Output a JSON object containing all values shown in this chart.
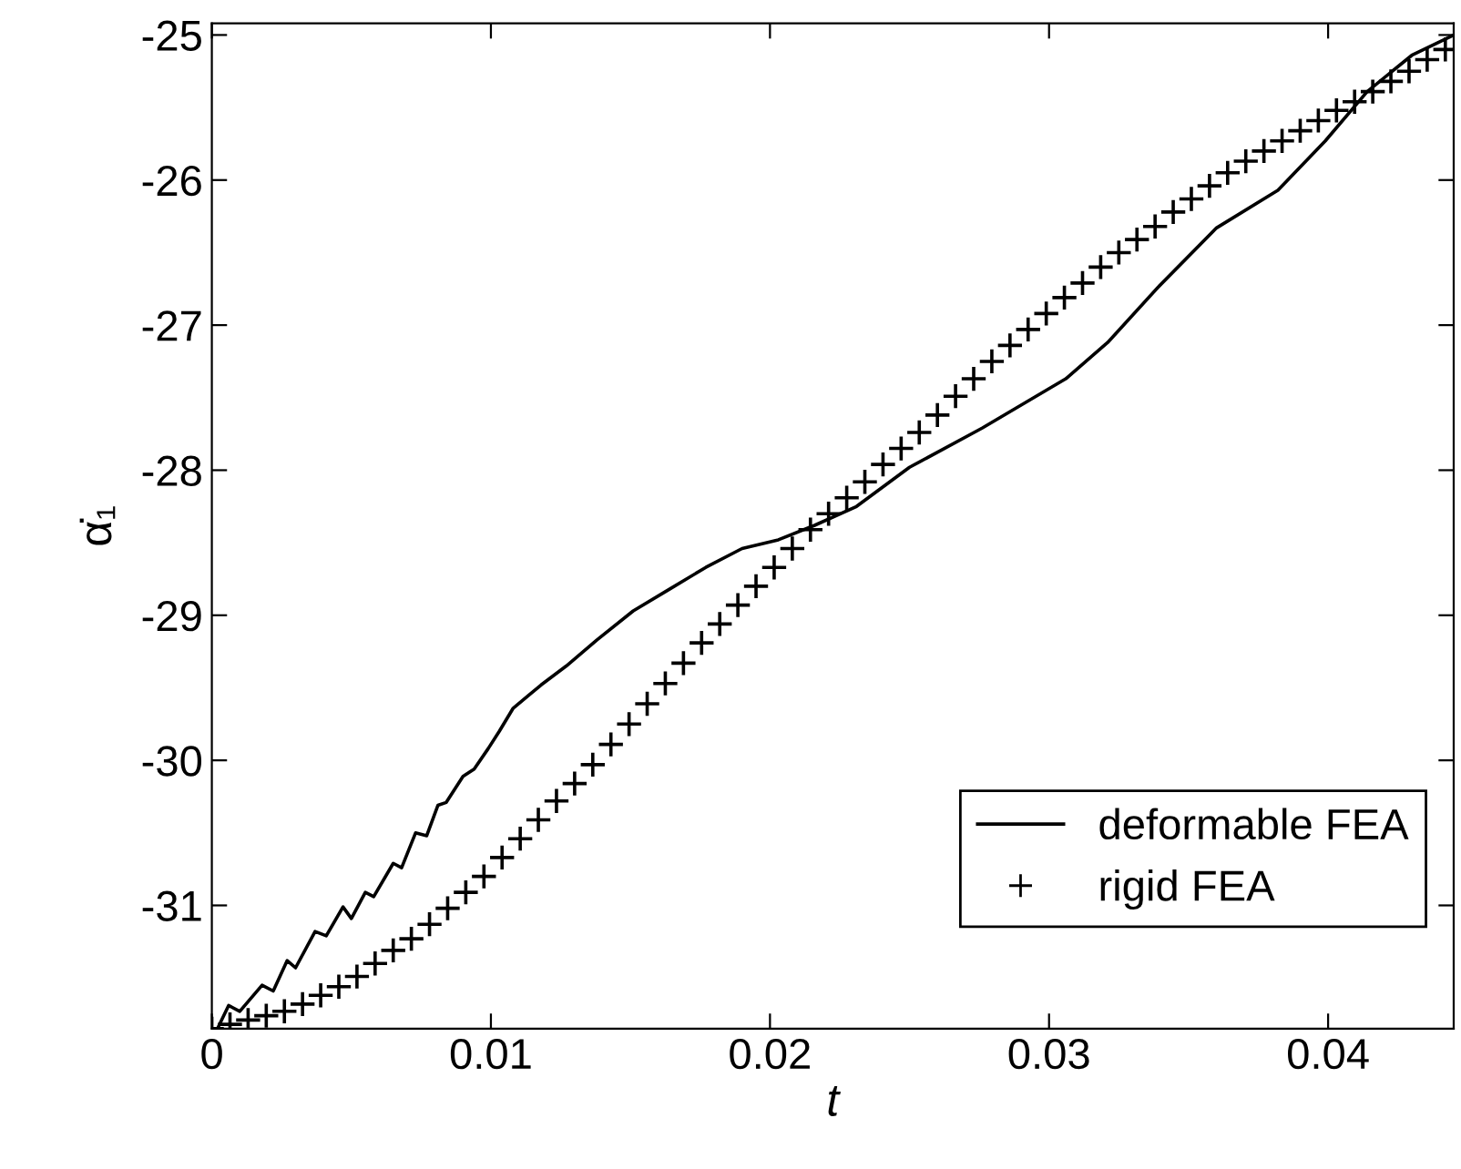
{
  "chart_data": {
    "type": "line",
    "xlabel": "t",
    "ylabel": "α̇₁",
    "xlim": [
      0,
      0.0445
    ],
    "ylim": [
      -31.85,
      -24.92
    ],
    "xticks": [
      0,
      0.01,
      0.02,
      0.03,
      0.04
    ],
    "yticks": [
      -25,
      -26,
      -27,
      -28,
      -29,
      -30,
      -31
    ],
    "grid": false,
    "legend": "bottom right",
    "series": [
      {
        "name": "deformable FEA",
        "color": "#000000",
        "marker": "none",
        "line_style": "solid",
        "x": [
          0.0002,
          0.0006,
          0.001,
          0.0018,
          0.0022,
          0.0027,
          0.003,
          0.0037,
          0.0041,
          0.0047,
          0.005,
          0.0055,
          0.0058,
          0.0065,
          0.0068,
          0.0073,
          0.0077,
          0.0081,
          0.0084,
          0.009,
          0.0094,
          0.0099,
          0.0103,
          0.0108,
          0.0118,
          0.0127,
          0.0138,
          0.0151,
          0.0164,
          0.0177,
          0.019,
          0.0203,
          0.0216,
          0.0231,
          0.025,
          0.0276,
          0.0306,
          0.0321,
          0.0339,
          0.036,
          0.0382,
          0.0399,
          0.0414,
          0.043,
          0.0445
        ],
        "values": [
          -31.85,
          -31.69,
          -31.73,
          -31.55,
          -31.59,
          -31.38,
          -31.43,
          -31.18,
          -31.21,
          -31.01,
          -31.09,
          -30.91,
          -30.94,
          -30.71,
          -30.74,
          -30.5,
          -30.52,
          -30.31,
          -30.29,
          -30.11,
          -30.06,
          -29.92,
          -29.8,
          -29.64,
          -29.48,
          -29.35,
          -29.17,
          -28.97,
          -28.82,
          -28.67,
          -28.54,
          -28.48,
          -28.38,
          -28.25,
          -27.98,
          -27.71,
          -27.37,
          -27.12,
          -26.74,
          -26.33,
          -26.07,
          -25.73,
          -25.39,
          -25.14,
          -25.0
        ]
      },
      {
        "name": "rigid FEA",
        "type": "scatter",
        "color": "#000000",
        "marker": "cross",
        "x": [
          0,
          0.00065,
          0.0013,
          0.00195,
          0.0026,
          0.00325,
          0.0039,
          0.00455,
          0.0052,
          0.00585,
          0.0065,
          0.00715,
          0.0078,
          0.00845,
          0.0091,
          0.00975,
          0.0104,
          0.01105,
          0.0117,
          0.01235,
          0.013,
          0.01365,
          0.0143,
          0.01495,
          0.0156,
          0.01625,
          0.0169,
          0.01755,
          0.0182,
          0.01885,
          0.0195,
          0.02015,
          0.0208,
          0.02145,
          0.0221,
          0.02275,
          0.0234,
          0.02405,
          0.0247,
          0.02535,
          0.026,
          0.02665,
          0.0273,
          0.02795,
          0.0286,
          0.02925,
          0.0299,
          0.03055,
          0.0312,
          0.03185,
          0.0325,
          0.03315,
          0.0338,
          0.03445,
          0.0351,
          0.03575,
          0.0364,
          0.03705,
          0.0377,
          0.03835,
          0.039,
          0.03965,
          0.0403,
          0.04095,
          0.0416,
          0.04225,
          0.0429,
          0.04355,
          0.0442
        ],
        "values": [
          -31.85,
          -31.82,
          -31.79,
          -31.76,
          -31.73,
          -31.68,
          -31.62,
          -31.56,
          -31.49,
          -31.4,
          -31.31,
          -31.23,
          -31.13,
          -31.02,
          -30.91,
          -30.8,
          -30.67,
          -30.54,
          -30.41,
          -30.28,
          -30.16,
          -30.03,
          -29.89,
          -29.75,
          -29.61,
          -29.47,
          -29.33,
          -29.19,
          -29.06,
          -28.93,
          -28.8,
          -28.67,
          -28.54,
          -28.41,
          -28.3,
          -28.19,
          -28.08,
          -27.96,
          -27.85,
          -27.74,
          -27.62,
          -27.49,
          -27.37,
          -27.25,
          -27.14,
          -27.03,
          -26.92,
          -26.81,
          -26.71,
          -26.6,
          -26.5,
          -26.41,
          -26.32,
          -26.22,
          -26.13,
          -26.04,
          -25.95,
          -25.87,
          -25.8,
          -25.73,
          -25.66,
          -25.59,
          -25.52,
          -25.46,
          -25.39,
          -25.32,
          -25.25,
          -25.17,
          -25.1
        ]
      }
    ]
  }
}
